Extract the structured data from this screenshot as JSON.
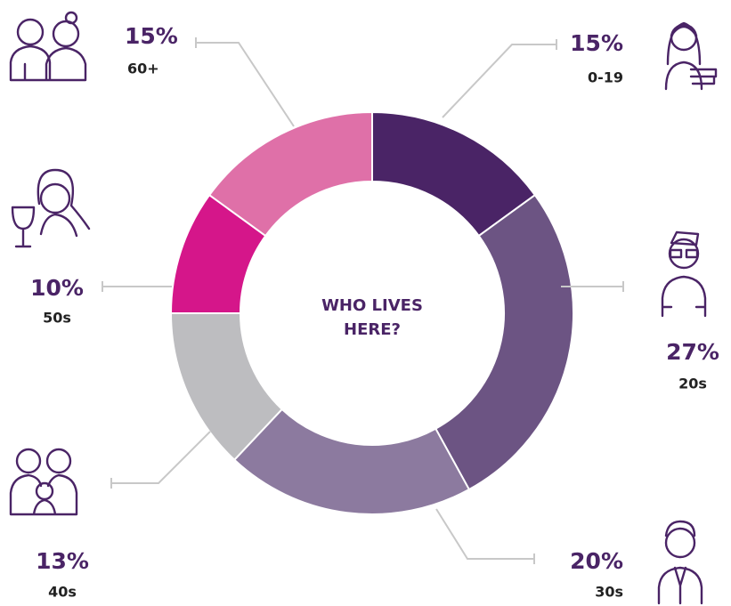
{
  "chart_data": {
    "type": "donut",
    "title": "WHO LIVES HERE?",
    "categories": [
      "0-19",
      "20s",
      "30s",
      "40s",
      "50s",
      "60+"
    ],
    "values": [
      15,
      27,
      20,
      13,
      10,
      15
    ],
    "value_labels": [
      "15%",
      "27%",
      "20%",
      "13%",
      "10%",
      "15%"
    ],
    "colors": [
      "#4a2466",
      "#6c5483",
      "#8c7a9f",
      "#bdbdc0",
      "#d5168a",
      "#df70a8"
    ]
  }
}
